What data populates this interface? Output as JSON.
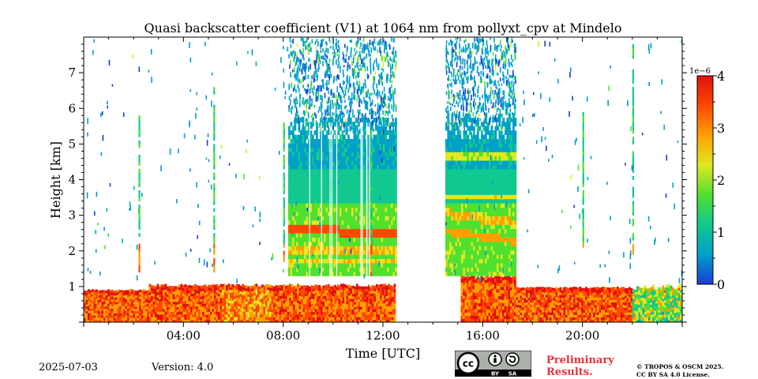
{
  "chart_data": {
    "type": "heatmap",
    "title": "Quasi backscatter coefficient (V1) at 1064 nm from pollyxt_cpv at Mindelo",
    "xlabel": "Time [UTC]",
    "ylabel": "Height [km]",
    "xlim_hours": [
      0,
      24
    ],
    "ylim_km": [
      0,
      8
    ],
    "x_ticks": [
      {
        "value": 4,
        "label": "04:00"
      },
      {
        "value": 8,
        "label": "08:00"
      },
      {
        "value": 12,
        "label": "12:00"
      },
      {
        "value": 16,
        "label": "16:00"
      },
      {
        "value": 20,
        "label": "20:00"
      }
    ],
    "y_ticks": [
      {
        "value": 1,
        "label": "1"
      },
      {
        "value": 2,
        "label": "2"
      },
      {
        "value": 3,
        "label": "3"
      },
      {
        "value": 4,
        "label": "4"
      },
      {
        "value": 5,
        "label": "5"
      },
      {
        "value": 6,
        "label": "6"
      },
      {
        "value": 7,
        "label": "7"
      }
    ],
    "colorbar": {
      "min": 0,
      "max": 4,
      "scale_label": "1e−6",
      "ticks": [
        {
          "value": 0,
          "label": "0"
        },
        {
          "value": 1,
          "label": "1"
        },
        {
          "value": 2,
          "label": "2"
        },
        {
          "value": 3,
          "label": "3"
        },
        {
          "value": 4,
          "label": "4"
        }
      ],
      "colormap": [
        "#1a3bd8",
        "#00a0c8",
        "#10c890",
        "#50e030",
        "#e0e820",
        "#ffa000",
        "#ff4800",
        "#e01010"
      ]
    },
    "regions": [
      {
        "name": "boundary-layer-morning",
        "t": [
          0,
          2.6
        ],
        "h": [
          0,
          0.9
        ],
        "value": 3.4
      },
      {
        "name": "boundary-layer-forenoon",
        "t": [
          2.6,
          12.5
        ],
        "h": [
          0,
          1.05
        ],
        "value": 3.0
      },
      {
        "name": "boundary-layer-afternoon",
        "t": [
          15.1,
          22
        ],
        "h": [
          0,
          0.95
        ],
        "value": 3.2
      },
      {
        "name": "boundary-layer-night",
        "t": [
          22,
          24
        ],
        "h": [
          0,
          1.0
        ],
        "value": 1.6
      },
      {
        "name": "aerosol-layer-morning",
        "t": [
          8.2,
          12.5
        ],
        "h": [
          1.3,
          5.5
        ],
        "value": 1.5
      },
      {
        "name": "aerosol-layer-afternoon",
        "t": [
          14.5,
          17.3
        ],
        "h": [
          1.3,
          5.6
        ],
        "value": 1.6
      }
    ],
    "data_gap_hours": [
      12.5,
      14.5
    ],
    "date": "2025-07-03",
    "version": "Version: 4.0"
  },
  "footer": {
    "date": "2025-07-03",
    "version": "Version: 4.0",
    "preliminary_line1": "Preliminary",
    "preliminary_line2": "Results.",
    "copyright_line1": "© TROPOS & OSCM 2025.",
    "copyright_line2": "CC BY SA 4.0 License.",
    "license_badge_text": "cc BY SA"
  }
}
